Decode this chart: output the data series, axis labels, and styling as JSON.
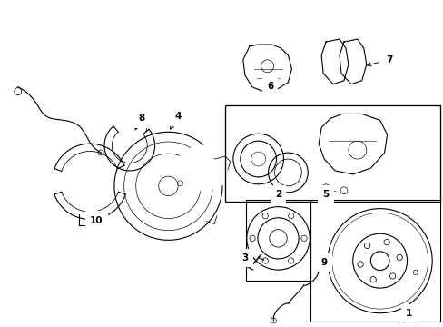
{
  "bg_color": "#ffffff",
  "line_color": "#000000",
  "fig_width": 4.89,
  "fig_height": 3.6,
  "dpi": 100,
  "label_fontsize": 7.5
}
